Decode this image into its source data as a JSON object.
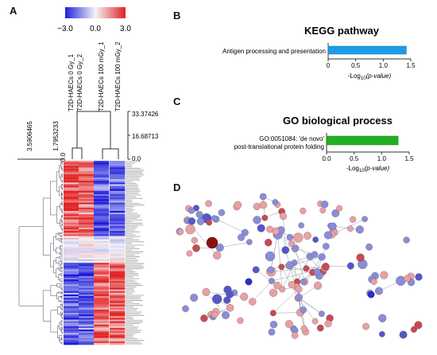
{
  "panels": {
    "a": "A",
    "b": "B",
    "c": "C",
    "d": "D"
  },
  "colors": {
    "low": "#2b2bd6",
    "mid": "#f4f4f8",
    "high": "#e22222",
    "kegg_bar": "#1e9be8",
    "go_bar": "#22b022",
    "node_blue": "#8a8cd8",
    "node_red": "#e8a0a4"
  },
  "heatmap": {
    "scale_labels": [
      "−3.0",
      "0.0",
      "3.0"
    ],
    "scale_range": [
      -3.0,
      3.0
    ],
    "columns": [
      "T2D-HAECs 0 Gy_1",
      "T2D-HAECs 0 Gy_2",
      "T2D-HAECs 100 mGy_1",
      "T2D-HAECs 100 mGy_2"
    ],
    "col_dendro_ticks": [
      "33.37426",
      "16.68713",
      "0.0"
    ],
    "row_dendro_ticks": [
      "3.5906465",
      "1.7953233",
      "0.0"
    ]
  },
  "chart_data": [
    {
      "type": "bar",
      "orientation": "horizontal",
      "title": "KEGG pathway",
      "categories": [
        "Antigen processing and presentation"
      ],
      "values": [
        1.42
      ],
      "xlabel_prefix": "-Log",
      "xlabel_sub": "10",
      "xlabel_suffix": "(p-value)",
      "xticks": [
        "0",
        "0.5",
        "1.0",
        "1.5"
      ],
      "xlim": [
        0,
        1.5
      ],
      "color": "#1e9be8"
    },
    {
      "type": "bar",
      "orientation": "horizontal",
      "title": "GO biological process",
      "categories": [
        "GO:0051084: 'de novo' post-translational protein folding"
      ],
      "category_lines": [
        "GO:0051084: 'de novo'",
        "post-translational protein folding"
      ],
      "values": [
        1.3
      ],
      "xlabel_prefix": "-Log",
      "xlabel_sub": "10",
      "xlabel_suffix": "(p-value)",
      "xticks": [
        "0.0",
        "0.5",
        "1.0",
        "1.5"
      ],
      "xlim": [
        0,
        1.5
      ],
      "color": "#22b022"
    }
  ]
}
